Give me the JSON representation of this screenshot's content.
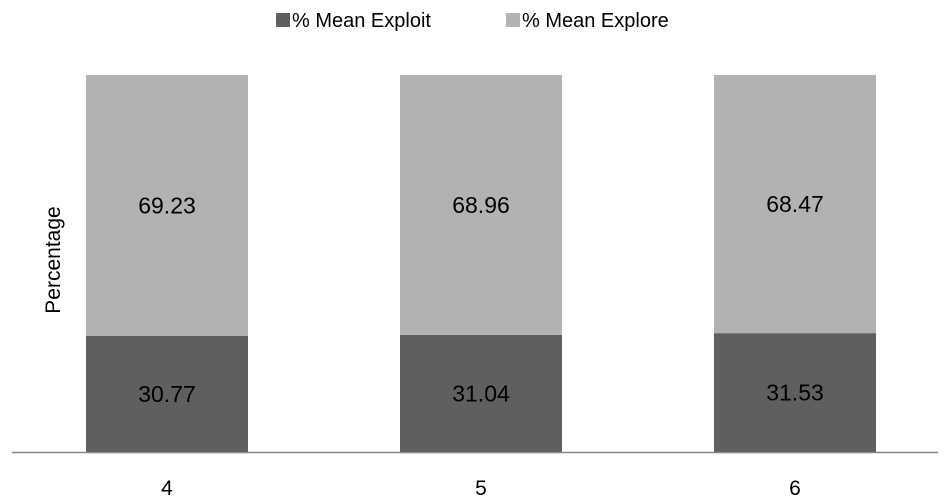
{
  "chart_data": {
    "type": "bar",
    "stacked": true,
    "categories": [
      "4",
      "5",
      "6"
    ],
    "series": [
      {
        "name": "% Mean Exploit",
        "values": [
          30.77,
          31.04,
          31.53
        ],
        "color": "#5f5f5f"
      },
      {
        "name": "% Mean Explore",
        "values": [
          69.23,
          68.96,
          68.47
        ],
        "color": "#b2b2b2"
      }
    ],
    "data_labels": [
      [
        "30.77",
        "31.04",
        "31.53"
      ],
      [
        "69.23",
        "68.96",
        "68.47"
      ]
    ],
    "title": "",
    "xlabel": "",
    "ylabel": "Percentage",
    "ylim": [
      0,
      100
    ],
    "grid": false,
    "legend_position": "top"
  }
}
